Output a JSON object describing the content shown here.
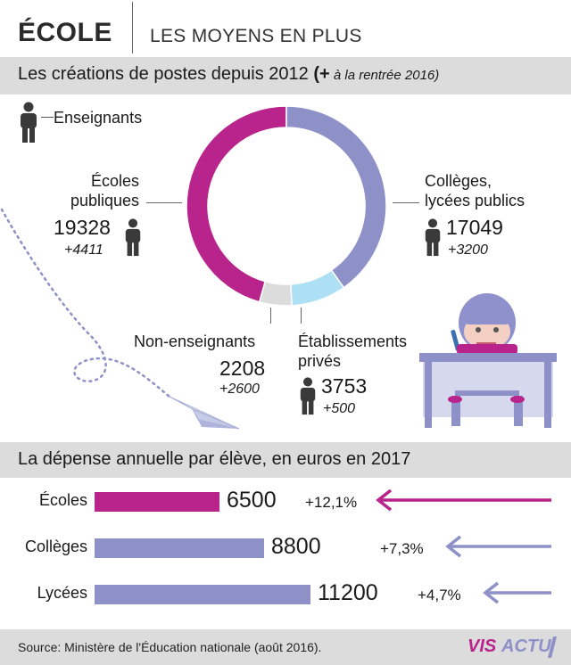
{
  "header": {
    "title": "ÉCOLE",
    "subtitle": "LES MOYENS EN PLUS"
  },
  "section1": {
    "title": "Les créations de postes depuis 2012",
    "note_prefix": "(+",
    "note_rest": " à la rentrée 2016)"
  },
  "legend": {
    "label": "Enseignants"
  },
  "section2": {
    "title": "La dépense annuelle par élève, en euros en 2017"
  },
  "footer": {
    "source": "Source: Ministère de l'Éducation nationale (août 2016).",
    "logo_a": "VIS",
    "logo_b": "ACTU"
  },
  "colors": {
    "magenta": "#b8238c",
    "lavender": "#8e90c8",
    "lightblue": "#aee0f5",
    "gray": "#dcdcdc"
  },
  "chart_data": [
    {
      "type": "pie",
      "categories": [
        "Écoles publiques",
        "Collèges, lycées publics",
        "Établissements privés",
        "Non-enseignants"
      ],
      "category_lines": [
        [
          "Écoles",
          "publiques"
        ],
        [
          "Collèges,",
          "lycées publics"
        ],
        [
          "Établissements",
          "privés"
        ],
        [
          "Non-enseignants"
        ]
      ],
      "values": [
        19328,
        17049,
        3753,
        2208
      ],
      "value_labels": [
        "19328",
        "17049",
        "3753",
        "2208"
      ],
      "increase_2016": [
        4411,
        3200,
        500,
        2600
      ],
      "increase_labels": [
        "+4411",
        "+3200",
        "+500",
        "+2600"
      ],
      "colors": [
        "#b8238c",
        "#8e90c8",
        "#aee0f5",
        "#dcdcdc"
      ]
    },
    {
      "type": "bar",
      "categories": [
        "Écoles",
        "Collèges",
        "Lycées"
      ],
      "values": [
        6500,
        8800,
        11200
      ],
      "value_labels": [
        "6500",
        "8800",
        "11200"
      ],
      "change_labels": [
        "+12,1%",
        "+7,3%",
        "+4,7%"
      ],
      "colors": [
        "#b8238c",
        "#8e90c8",
        "#8e90c8"
      ]
    }
  ]
}
